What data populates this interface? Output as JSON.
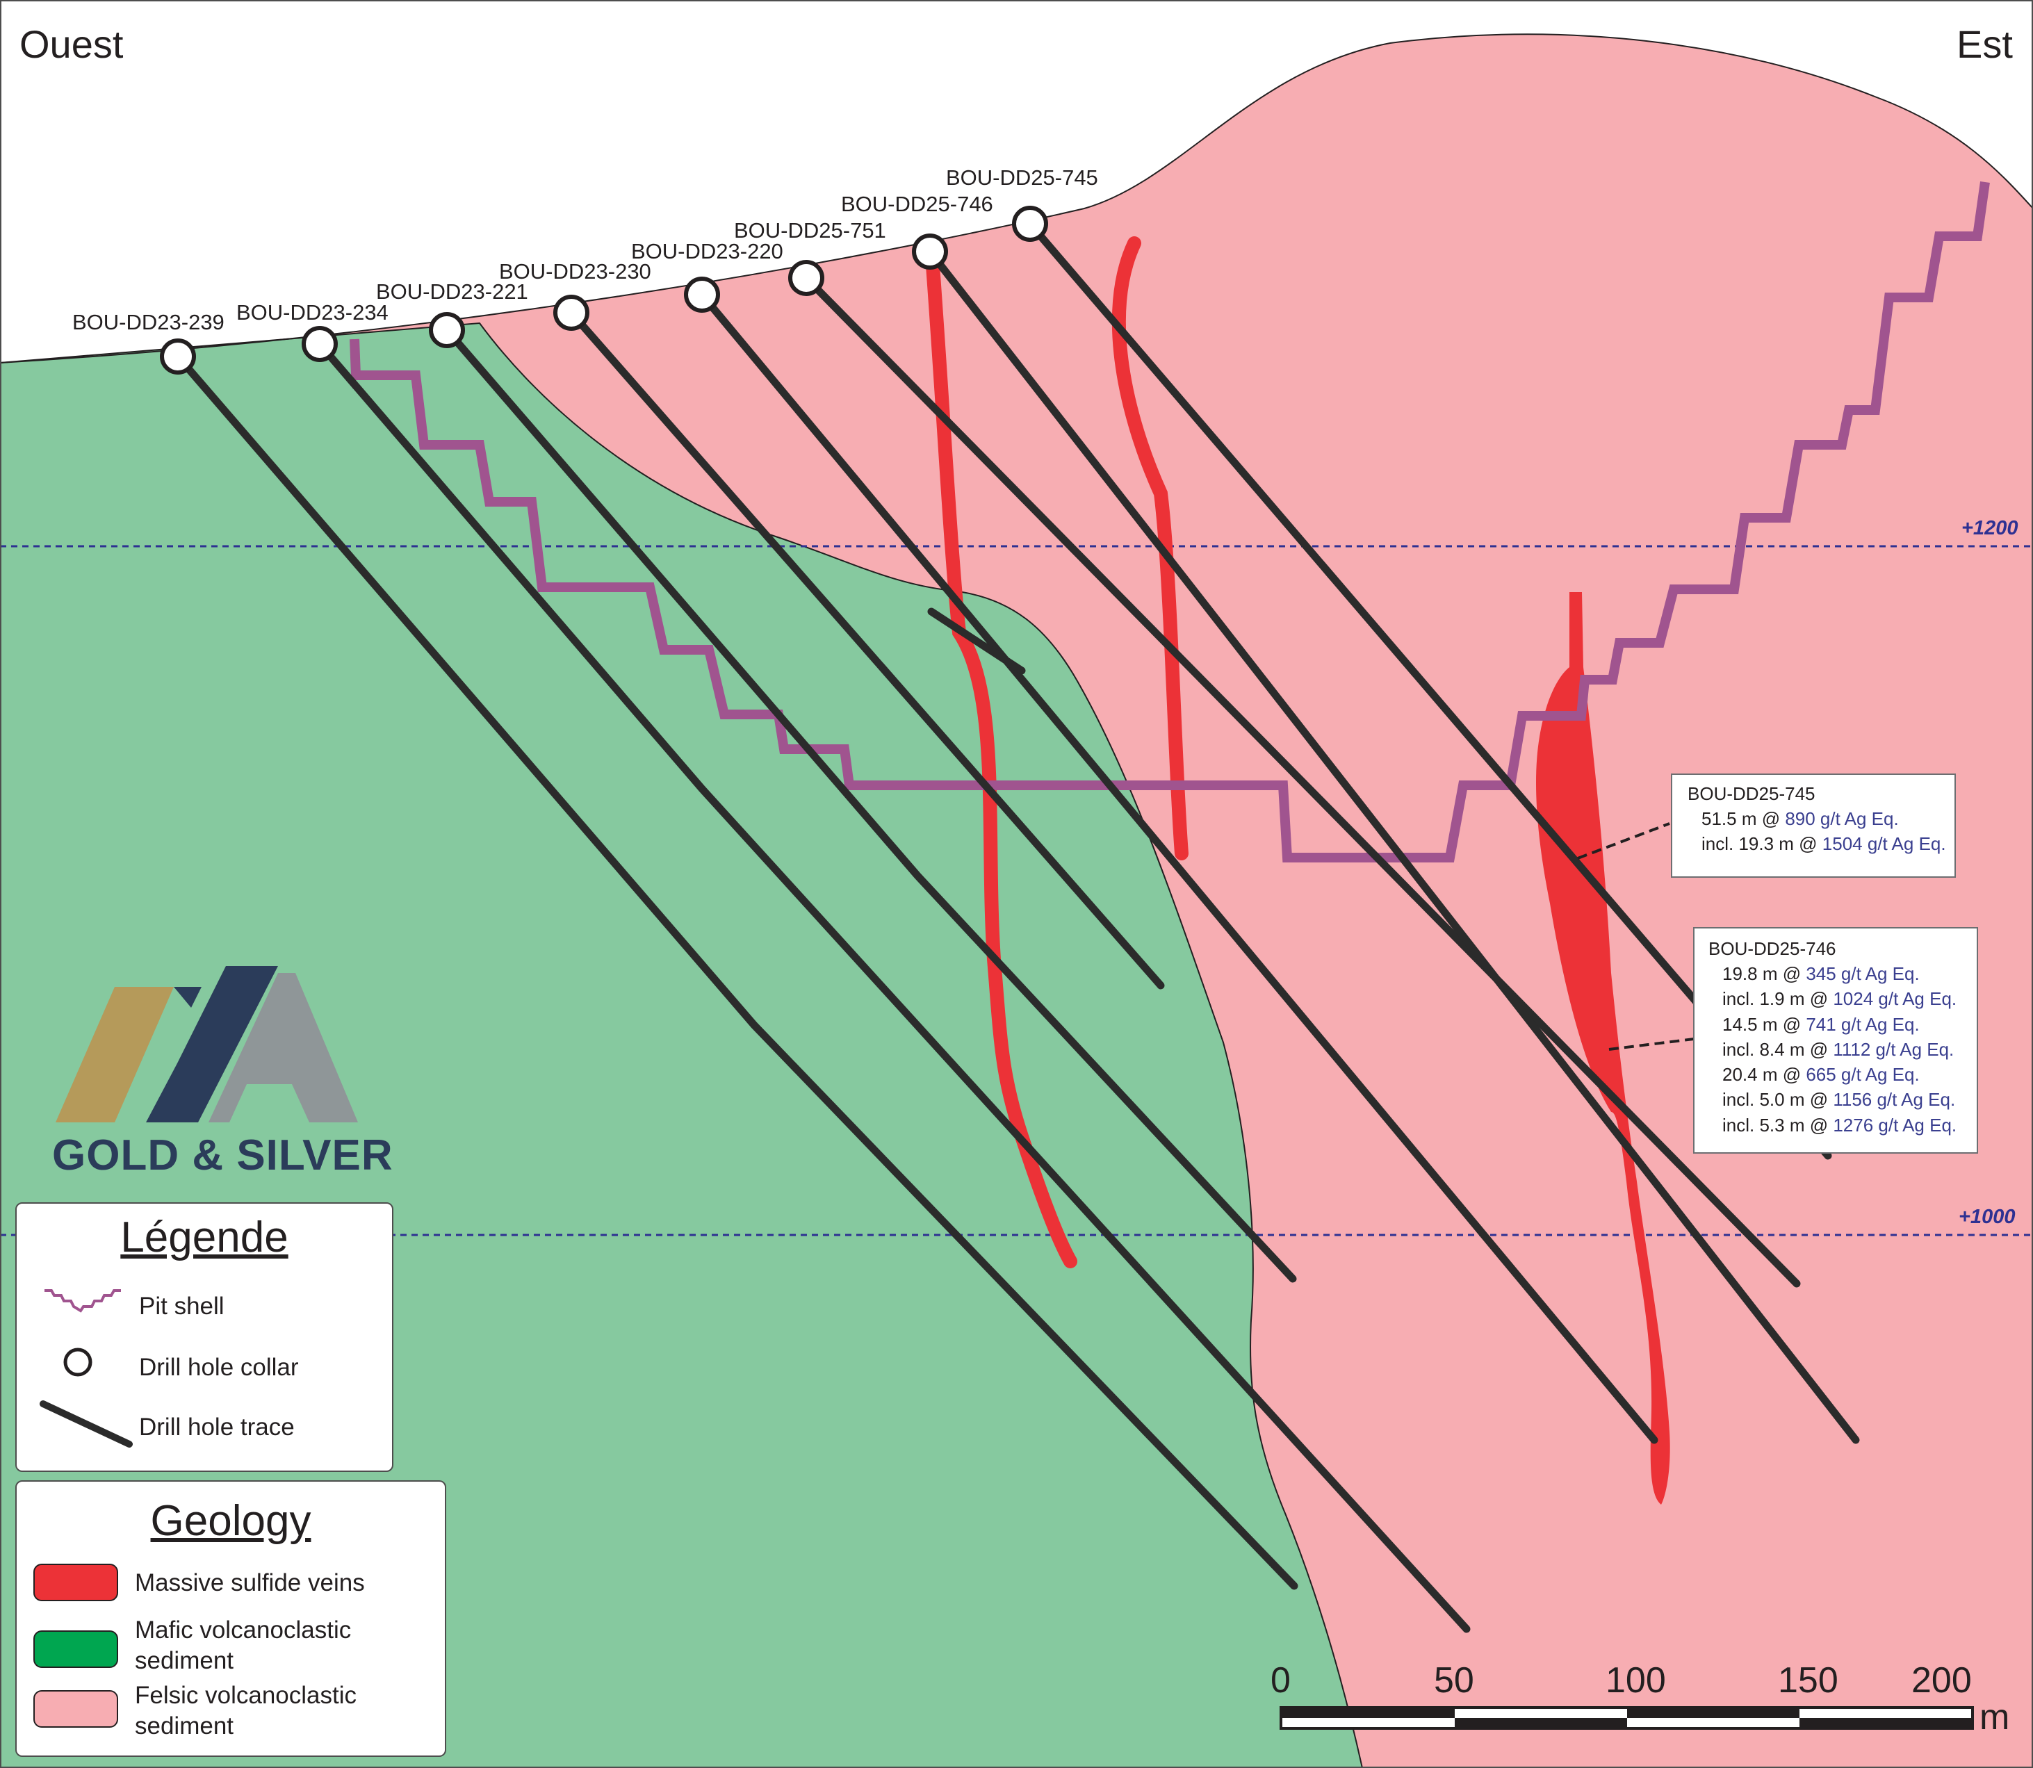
{
  "section": {
    "west_label": "Ouest",
    "east_label": "Est"
  },
  "colors": {
    "felsic": "#f7adb2",
    "mafic": "#86c99f",
    "vein": "#ec3237",
    "pit_shell": "#a0548f",
    "drill_trace": "#2b2b2b",
    "elevation_line": "#2e3192",
    "value_highlight": "#3a3f8f"
  },
  "elevations": [
    {
      "label": "+1200"
    },
    {
      "label": "+1000"
    }
  ],
  "drill_holes": [
    {
      "id": "BOU-DD23-239"
    },
    {
      "id": "BOU-DD23-234"
    },
    {
      "id": "BOU-DD23-221"
    },
    {
      "id": "BOU-DD23-230"
    },
    {
      "id": "BOU-DD23-220"
    },
    {
      "id": "BOU-DD25-751"
    },
    {
      "id": "BOU-DD25-746"
    },
    {
      "id": "BOU-DD25-745"
    }
  ],
  "callouts": {
    "dd745": {
      "title": "BOU-DD25-745",
      "rows": [
        {
          "prefix": "51.5 m @ ",
          "value": "890 g/t Ag Eq."
        },
        {
          "prefix": "incl. 19.3 m @ ",
          "value": "1504 g/t Ag Eq."
        }
      ]
    },
    "dd746": {
      "title": "BOU-DD25-746",
      "rows": [
        {
          "prefix": "19.8 m @ ",
          "value": "345 g/t Ag Eq."
        },
        {
          "prefix": "incl. 1.9 m @ ",
          "value": "1024 g/t Ag Eq."
        },
        {
          "prefix": "14.5 m @ ",
          "value": "741 g/t Ag Eq."
        },
        {
          "prefix": "incl. 8.4 m @ ",
          "value": "1112 g/t Ag Eq."
        },
        {
          "prefix": "20.4 m @ ",
          "value": "665 g/t Ag Eq."
        },
        {
          "prefix": "incl. 5.0 m @ ",
          "value": "1156 g/t Ag Eq."
        },
        {
          "prefix": "incl. 5.3 m @ ",
          "value": "1276 g/t Ag Eq."
        }
      ]
    }
  },
  "logo": {
    "text": "GOLD & SILVER"
  },
  "legend": {
    "title": "Légende",
    "items": [
      {
        "label": "Pit shell",
        "icon": "pit-shell-icon"
      },
      {
        "label": "Drill hole collar",
        "icon": "drill-collar-icon"
      },
      {
        "label": "Drill hole trace",
        "icon": "drill-trace-icon"
      }
    ]
  },
  "geology": {
    "title": "Geology",
    "items": [
      {
        "label": "Massive sulfide veins",
        "color": "#ec3237"
      },
      {
        "label": "Mafic volcanoclastic\nsediment",
        "color": "#00a650"
      },
      {
        "label": "Felsic volcanoclastic\nsediment",
        "color": "#f7adb2"
      }
    ]
  },
  "scale_bar": {
    "ticks": [
      "0",
      "50",
      "100",
      "150",
      "200"
    ],
    "unit": "m"
  }
}
